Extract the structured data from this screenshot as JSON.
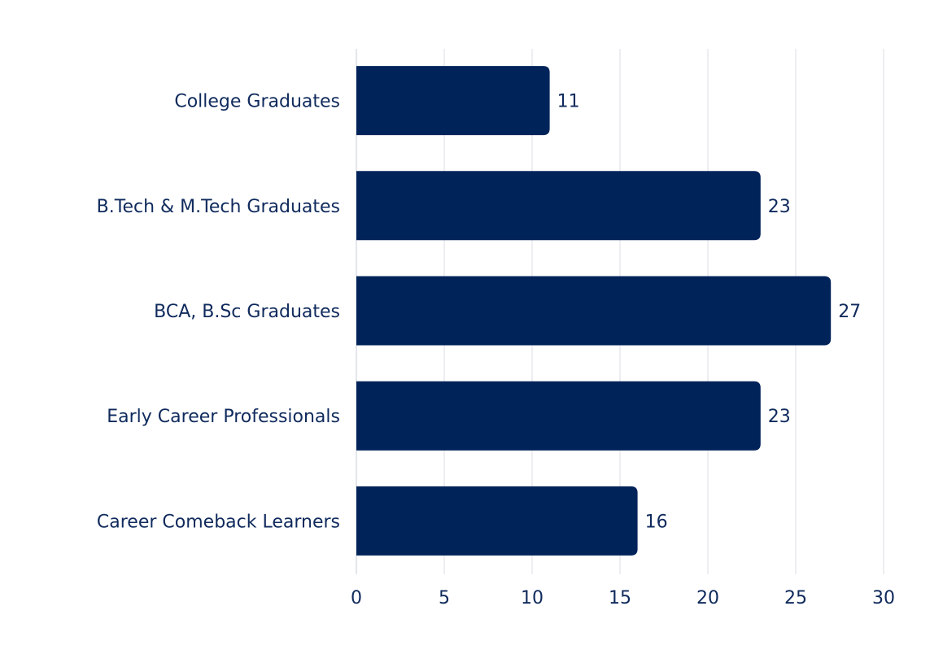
{
  "chart_data": {
    "type": "bar",
    "orientation": "horizontal",
    "title": "",
    "xlabel": "",
    "ylabel": "",
    "categories": [
      "College Graduates",
      "B.Tech & M.Tech Graduates",
      "BCA, B.Sc Graduates",
      "Early Career Professionals",
      "Career Comeback Learners"
    ],
    "values": [
      11,
      23,
      27,
      23,
      16
    ],
    "xlim": [
      0,
      30
    ],
    "xticks": [
      0,
      5,
      10,
      15,
      20,
      25,
      30
    ],
    "grid": "vertical",
    "bar_color": "#00235a",
    "text_color": "#0f2a5c"
  }
}
